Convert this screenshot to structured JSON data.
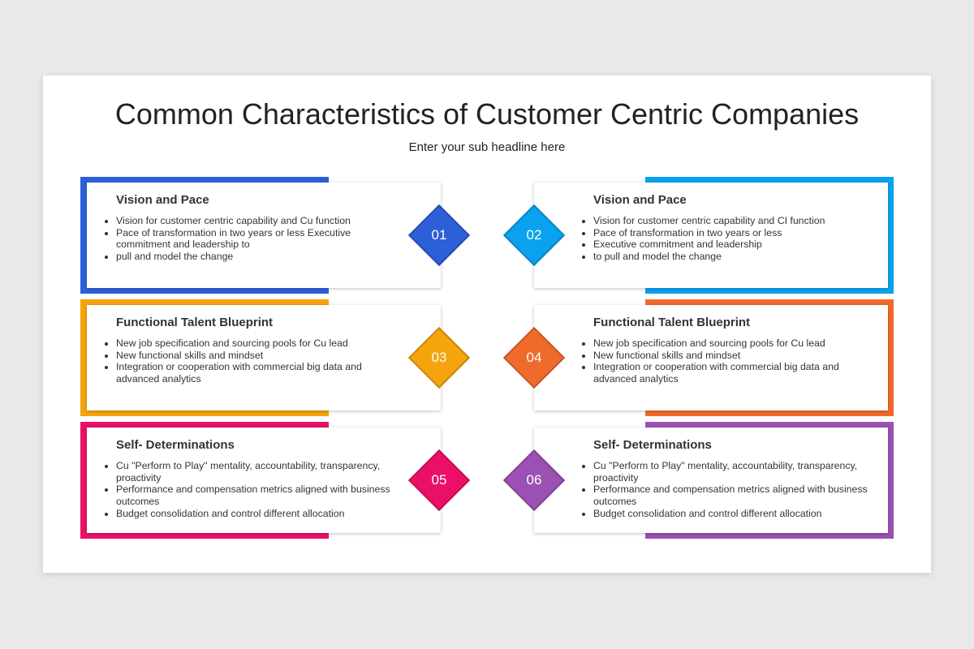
{
  "header": {
    "title": "Common Characteristics of Customer Centric Companies",
    "subtitle": "Enter your sub headline here"
  },
  "cards": [
    {
      "number": "01",
      "title": "Vision and Pace",
      "bullets": [
        "Vision for customer centric capability and Cu function",
        "Pace of transformation in two years or less Executive commitment and leadership to",
        "pull and model the change"
      ]
    },
    {
      "number": "02",
      "title": "Vision and Pace",
      "bullets": [
        "Vision for customer centric capability and CI function",
        "Pace of transformation in two years or less",
        "Executive commitment and leadership",
        "to pull and model the change"
      ]
    },
    {
      "number": "03",
      "title": "Functional Talent Blueprint",
      "bullets": [
        "New job specification and sourcing pools for Cu lead",
        "New functional skills and mindset",
        "Integration or cooperation with commercial big data and advanced analytics"
      ]
    },
    {
      "number": "04",
      "title": "Functional Talent Blueprint",
      "bullets": [
        "New job specification and sourcing pools for Cu lead",
        "New functional skills and mindset",
        "Integration or cooperation with commercial big data and advanced analytics"
      ]
    },
    {
      "number": "05",
      "title": "Self- Determinations",
      "bullets": [
        "Cu \"Perform to Play\" mentality, accountability, transparency, proactivity",
        "Performance and compensation metrics aligned with business outcomes",
        "Budget consolidation and control different allocation"
      ]
    },
    {
      "number": "06",
      "title": "Self- Determinations",
      "bullets": [
        "Cu \"Perform to Play\" mentality, accountability, transparency, proactivity",
        "Performance and compensation metrics aligned with business outcomes",
        "Budget consolidation and control different allocation"
      ]
    }
  ]
}
